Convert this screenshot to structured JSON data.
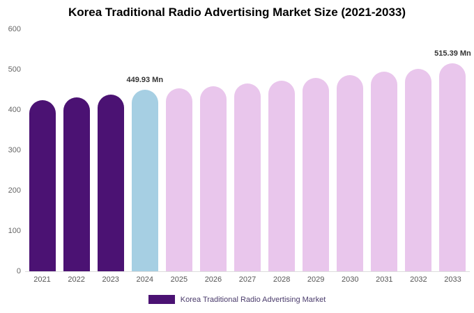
{
  "title": "Korea Traditional Radio Advertising Market Size (2021-2033)",
  "legend": {
    "label": "Korea Traditional Radio Advertising Market",
    "swatch_color": "#4b1273"
  },
  "colors": {
    "dark_purple": "#4b1273",
    "highlight_blue": "#a6cfe3",
    "light_pink": "#e9c6ec",
    "axis_text": "#666666",
    "label_text": "#333333"
  },
  "chart_data": {
    "type": "bar",
    "title": "Korea Traditional Radio Advertising Market Size (2021-2033)",
    "categories": [
      "2021",
      "2022",
      "2023",
      "2024",
      "2025",
      "2026",
      "2027",
      "2028",
      "2029",
      "2030",
      "2031",
      "2032",
      "2033"
    ],
    "values": [
      425,
      431,
      438,
      449.93,
      453,
      458,
      465,
      472,
      479,
      487,
      494,
      502,
      515.39
    ],
    "bar_colors": [
      "#4b1273",
      "#4b1273",
      "#4b1273",
      "#a6cfe3",
      "#e9c6ec",
      "#e9c6ec",
      "#e9c6ec",
      "#e9c6ec",
      "#e9c6ec",
      "#e9c6ec",
      "#e9c6ec",
      "#e9c6ec",
      "#e9c6ec"
    ],
    "xlabel": "",
    "ylabel": "",
    "ylim": [
      0,
      600
    ],
    "yticks": [
      0,
      100,
      200,
      300,
      400,
      500,
      600
    ],
    "grid": false,
    "legend_position": "bottom",
    "annotations": [
      {
        "category": "2024",
        "text": "449.93 Mn"
      },
      {
        "category": "2033",
        "text": "515.39 Mn"
      }
    ]
  }
}
